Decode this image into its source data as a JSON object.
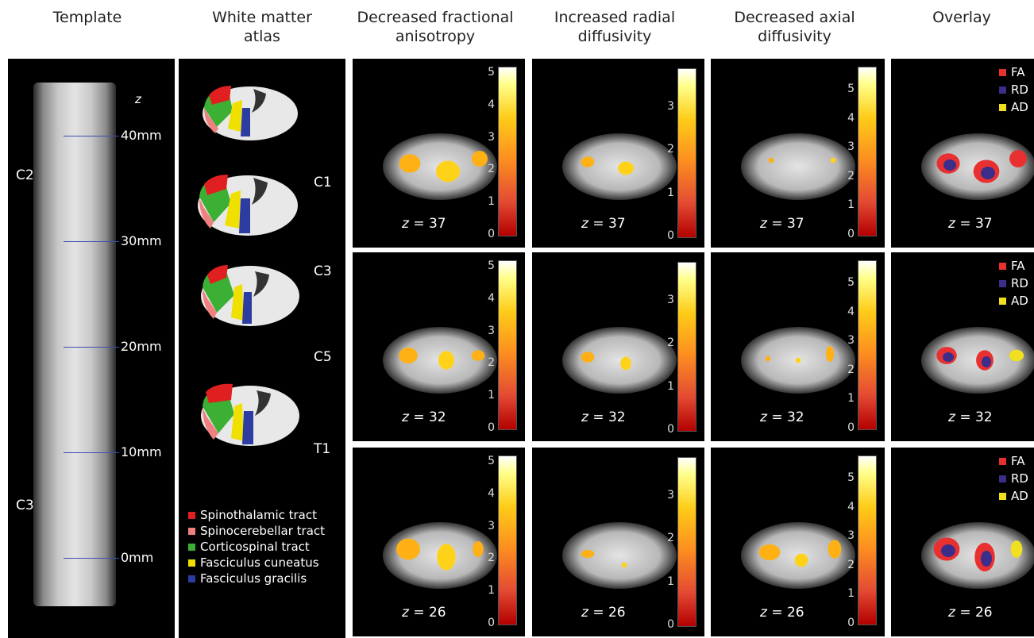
{
  "headers": {
    "template": "Template",
    "atlas_1": "White matter",
    "atlas_2": "atlas",
    "fa_1": "Decreased fractional",
    "fa_2": "anisotropy",
    "rd_1": "Increased radial",
    "rd_2": "diffusivity",
    "ad_1": "Decreased axial",
    "ad_2": "diffusivity",
    "overlay": "Overlay"
  },
  "template": {
    "axis_letter": "z",
    "marks": [
      "40mm",
      "30mm",
      "20mm",
      "10mm",
      "0mm"
    ],
    "levels": [
      "C2",
      "C3"
    ]
  },
  "atlas": {
    "levels": [
      "C1",
      "C3",
      "C5",
      "T1"
    ],
    "legend": [
      {
        "label": "Spinothalamic tract",
        "color": "#e02020"
      },
      {
        "label": "Spinocerebellar tract",
        "color": "#f08080"
      },
      {
        "label": "Corticospinal tract",
        "color": "#3cb034"
      },
      {
        "label": "Fasciculus cuneatus",
        "color": "#f0e000"
      },
      {
        "label": "Fasciculus gracilis",
        "color": "#2c3ca0"
      }
    ]
  },
  "z_prefix": "z",
  "slices": [
    "= 37",
    "= 32",
    "= 26"
  ],
  "colorbars": {
    "fa": [
      "5",
      "4",
      "3",
      "2",
      "1",
      "0"
    ],
    "rd": [
      "3",
      "2",
      "1",
      "0"
    ],
    "ad": [
      "5",
      "4",
      "3",
      "2",
      "1",
      "0"
    ]
  },
  "overlay_legend": [
    {
      "label": "FA",
      "color": "#e83030"
    },
    {
      "label": "RD",
      "color": "#3a2e8a"
    },
    {
      "label": "AD",
      "color": "#f0e020"
    }
  ]
}
